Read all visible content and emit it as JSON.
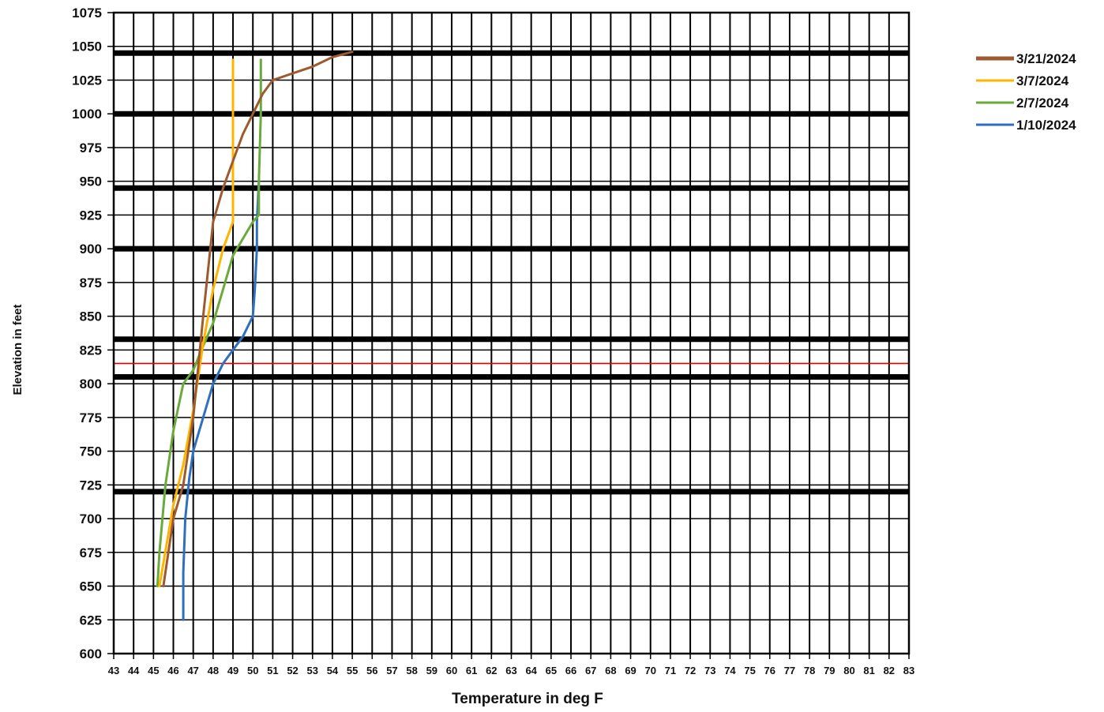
{
  "chart_data": {
    "type": "line",
    "title": "",
    "xlabel": "Temperature in deg F",
    "ylabel": "Elevation in feet",
    "xlim": [
      43,
      83
    ],
    "ylim": [
      600,
      1075
    ],
    "x_ticks": [
      43,
      44,
      45,
      46,
      47,
      48,
      49,
      50,
      51,
      52,
      53,
      54,
      55,
      56,
      57,
      58,
      59,
      60,
      61,
      62,
      63,
      64,
      65,
      66,
      67,
      68,
      69,
      70,
      71,
      72,
      73,
      74,
      75,
      76,
      77,
      78,
      79,
      80,
      81,
      82,
      83
    ],
    "y_ticks": [
      600,
      625,
      650,
      675,
      700,
      725,
      750,
      775,
      800,
      825,
      850,
      875,
      900,
      925,
      950,
      975,
      1000,
      1025,
      1050,
      1075
    ],
    "grid": true,
    "legend_position": "right",
    "reference_lines": [
      {
        "y": 1045,
        "color": "#000000",
        "style": "thick"
      },
      {
        "y": 1000,
        "color": "#000000",
        "style": "thick"
      },
      {
        "y": 945,
        "color": "#000000",
        "style": "thick"
      },
      {
        "y": 900,
        "color": "#000000",
        "style": "thick"
      },
      {
        "y": 833,
        "color": "#000000",
        "style": "thick"
      },
      {
        "y": 805,
        "color": "#000000",
        "style": "thick"
      },
      {
        "y": 720,
        "color": "#000000",
        "style": "thick"
      },
      {
        "y": 815,
        "color": "#e00000",
        "style": "thin"
      }
    ],
    "series": [
      {
        "name": "3/21/2024",
        "color": "#9c5a2e",
        "points": [
          [
            45.5,
            650
          ],
          [
            46,
            700
          ],
          [
            46.5,
            725
          ],
          [
            47,
            775
          ],
          [
            47.5,
            850
          ],
          [
            48,
            920
          ],
          [
            48.5,
            945
          ],
          [
            49,
            965
          ],
          [
            49.5,
            985
          ],
          [
            50,
            1000
          ],
          [
            50.5,
            1015
          ],
          [
            51,
            1025
          ],
          [
            52,
            1030
          ],
          [
            53,
            1035
          ],
          [
            54,
            1042
          ],
          [
            55,
            1046
          ]
        ]
      },
      {
        "name": "3/7/2024",
        "color": "#ffb400",
        "points": [
          [
            45.3,
            650
          ],
          [
            46,
            710
          ],
          [
            46.5,
            740
          ],
          [
            47,
            780
          ],
          [
            47.5,
            830
          ],
          [
            48,
            870
          ],
          [
            48.5,
            900
          ],
          [
            49,
            920
          ],
          [
            49,
            930
          ],
          [
            49,
            1000
          ],
          [
            49,
            1040
          ]
        ]
      },
      {
        "name": "2/7/2024",
        "color": "#6aaa3a",
        "points": [
          [
            45.2,
            650
          ],
          [
            45.3,
            675
          ],
          [
            45.6,
            725
          ],
          [
            46,
            765
          ],
          [
            46.5,
            800
          ],
          [
            47,
            810
          ],
          [
            47.5,
            828
          ],
          [
            48,
            845
          ],
          [
            48.5,
            870
          ],
          [
            49,
            895
          ],
          [
            50,
            920
          ],
          [
            50.3,
            925
          ],
          [
            50.3,
            950
          ],
          [
            50.4,
            1000
          ],
          [
            50.4,
            1040
          ]
        ]
      },
      {
        "name": "1/10/2024",
        "color": "#2f6fc0",
        "points": [
          [
            46.5,
            625
          ],
          [
            46.5,
            660
          ],
          [
            46.6,
            700
          ],
          [
            46.8,
            730
          ],
          [
            47,
            750
          ],
          [
            47.5,
            775
          ],
          [
            48,
            800
          ],
          [
            48.5,
            815
          ],
          [
            49,
            825
          ],
          [
            49.5,
            835
          ],
          [
            50,
            850
          ],
          [
            50.1,
            870
          ],
          [
            50.2,
            900
          ],
          [
            50.2,
            920
          ],
          [
            50.3,
            950
          ]
        ]
      }
    ]
  }
}
